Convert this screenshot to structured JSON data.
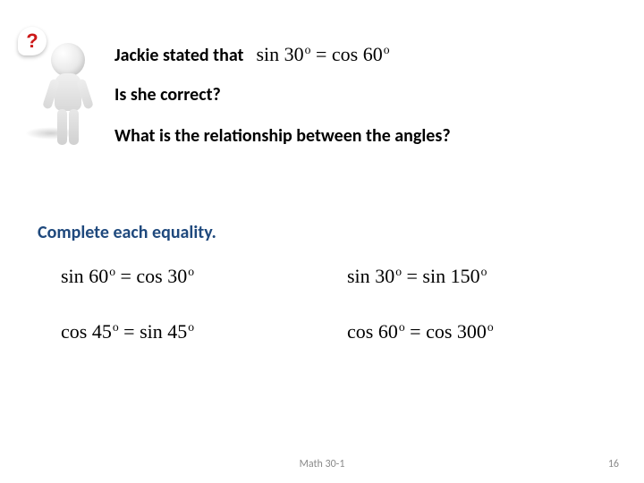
{
  "figure": {
    "question_mark": "?",
    "question_color": "#cc1818"
  },
  "intro": {
    "statement": "Jackie stated that",
    "equation": {
      "lhs_fn": "sin",
      "lhs_deg": "30",
      "rhs_fn": "cos",
      "rhs_deg": "60"
    },
    "q2": "Is she correct?",
    "q3": "What is the relationship between the angles?"
  },
  "subheading": {
    "text": "Complete each equality.",
    "color": "#1f497d"
  },
  "equalities": {
    "row1": {
      "left": {
        "lhs_fn": "sin",
        "lhs_deg": "60",
        "rhs_fn": "cos",
        "rhs_deg": "30"
      },
      "right": {
        "lhs_fn": "sin",
        "lhs_deg": "30",
        "rhs_fn": "sin",
        "rhs_deg": "150"
      }
    },
    "row2": {
      "left": {
        "lhs_fn": "cos",
        "lhs_deg": "45",
        "rhs_fn": "sin",
        "rhs_deg": "45"
      },
      "right": {
        "lhs_fn": "cos",
        "lhs_deg": "60",
        "rhs_fn": "cos",
        "rhs_deg": "300"
      }
    }
  },
  "footer": {
    "center": "Math 30-1",
    "page": "16"
  },
  "colors": {
    "background": "#ffffff",
    "text": "#000000",
    "footer": "#8a8a8a"
  }
}
